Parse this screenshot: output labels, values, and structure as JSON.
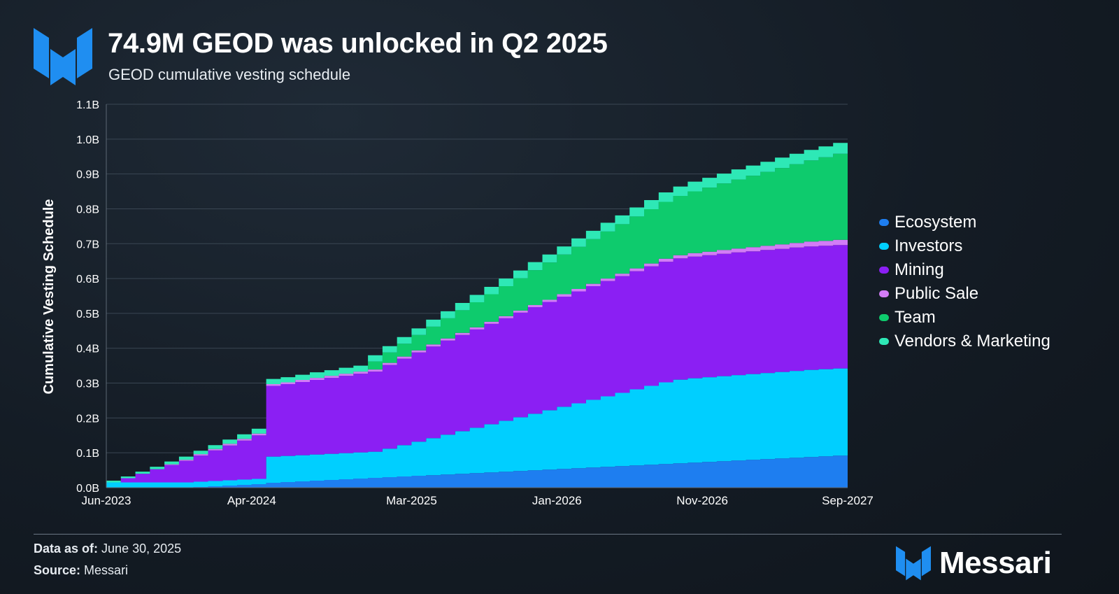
{
  "header": {
    "title": "74.9M GEOD was unlocked in Q2 2025",
    "subtitle": "GEOD cumulative vesting schedule"
  },
  "footer": {
    "data_as_of_label": "Data as of:",
    "data_as_of_value": "June 30, 2025",
    "source_label": "Source:",
    "source_value": "Messari",
    "brand_name": "Messari"
  },
  "colors": {
    "background": "#151d26",
    "grid": "#3a4653",
    "text": "#ffffff",
    "brand_blue": "#1f8ef1"
  },
  "chart_data": {
    "type": "area",
    "stacked": true,
    "title": "74.9M GEOD was unlocked in Q2 2025",
    "subtitle": "GEOD cumulative vesting schedule",
    "xlabel": "",
    "ylabel": "Cumulative Vesting Schedule",
    "ylim": [
      0,
      1.1
    ],
    "y_unit": "B",
    "yticks": [
      "0.0B",
      "0.1B",
      "0.2B",
      "0.3B",
      "0.4B",
      "0.5B",
      "0.6B",
      "0.7B",
      "0.8B",
      "0.9B",
      "1.0B",
      "1.1B"
    ],
    "xtick_labels": [
      "Jun-2023",
      "Apr-2024",
      "Mar-2025",
      "Jan-2026",
      "Nov-2026",
      "Sep-2027"
    ],
    "xtick_month_index": [
      0,
      10,
      21,
      31,
      41,
      51
    ],
    "grid": true,
    "legend_position": "right",
    "x": [
      "Jun-2023",
      "Jul-2023",
      "Aug-2023",
      "Sep-2023",
      "Oct-2023",
      "Nov-2023",
      "Dec-2023",
      "Jan-2024",
      "Feb-2024",
      "Mar-2024",
      "Apr-2024",
      "May-2024",
      "Jun-2024",
      "Jul-2024",
      "Aug-2024",
      "Sep-2024",
      "Oct-2024",
      "Nov-2024",
      "Dec-2024",
      "Jan-2025",
      "Feb-2025",
      "Mar-2025",
      "Apr-2025",
      "May-2025",
      "Jun-2025",
      "Jul-2025",
      "Aug-2025",
      "Sep-2025",
      "Oct-2025",
      "Nov-2025",
      "Dec-2025",
      "Jan-2026",
      "Feb-2026",
      "Mar-2026",
      "Apr-2026",
      "May-2026",
      "Jun-2026",
      "Jul-2026",
      "Aug-2026",
      "Sep-2026",
      "Oct-2026",
      "Nov-2026",
      "Dec-2026",
      "Jan-2027",
      "Feb-2027",
      "Mar-2027",
      "Apr-2027",
      "May-2027",
      "Jun-2027",
      "Jul-2027",
      "Aug-2027",
      "Sep-2027"
    ],
    "series": [
      {
        "name": "Ecosystem",
        "color": "#1e7ef0",
        "values": [
          0.0,
          0.0,
          0.0,
          0.0,
          0.0,
          0.0,
          0.002,
          0.004,
          0.006,
          0.008,
          0.01,
          0.014,
          0.016,
          0.018,
          0.02,
          0.022,
          0.024,
          0.026,
          0.028,
          0.03,
          0.032,
          0.034,
          0.036,
          0.038,
          0.04,
          0.042,
          0.044,
          0.046,
          0.048,
          0.05,
          0.052,
          0.054,
          0.056,
          0.058,
          0.06,
          0.062,
          0.064,
          0.066,
          0.068,
          0.07,
          0.072,
          0.074,
          0.076,
          0.078,
          0.08,
          0.082,
          0.084,
          0.086,
          0.088,
          0.09,
          0.092,
          0.096
        ]
      },
      {
        "name": "Investors",
        "color": "#00cfff",
        "values": [
          0.015,
          0.015,
          0.015,
          0.015,
          0.015,
          0.015,
          0.015,
          0.015,
          0.015,
          0.015,
          0.015,
          0.075,
          0.075,
          0.075,
          0.075,
          0.075,
          0.075,
          0.075,
          0.075,
          0.082,
          0.09,
          0.098,
          0.106,
          0.114,
          0.122,
          0.13,
          0.138,
          0.146,
          0.154,
          0.162,
          0.17,
          0.178,
          0.186,
          0.194,
          0.202,
          0.21,
          0.218,
          0.226,
          0.234,
          0.24,
          0.242,
          0.243,
          0.244,
          0.245,
          0.246,
          0.247,
          0.248,
          0.249,
          0.25,
          0.25,
          0.25,
          0.25
        ]
      },
      {
        "name": "Mining",
        "color": "#8b1ff3",
        "values": [
          0.0,
          0.012,
          0.025,
          0.038,
          0.05,
          0.062,
          0.075,
          0.088,
          0.1,
          0.112,
          0.125,
          0.203,
          0.206,
          0.21,
          0.214,
          0.218,
          0.222,
          0.226,
          0.23,
          0.24,
          0.248,
          0.256,
          0.263,
          0.27,
          0.276,
          0.282,
          0.288,
          0.294,
          0.3,
          0.306,
          0.311,
          0.316,
          0.321,
          0.326,
          0.331,
          0.335,
          0.339,
          0.343,
          0.346,
          0.348,
          0.349,
          0.35,
          0.351,
          0.352,
          0.352,
          0.353,
          0.353,
          0.354,
          0.354,
          0.354,
          0.354,
          0.355
        ]
      },
      {
        "name": "Public Sale",
        "color": "#d37cf6",
        "values": [
          0.0,
          0.0,
          0.0,
          0.0,
          0.002,
          0.003,
          0.004,
          0.004,
          0.005,
          0.005,
          0.005,
          0.005,
          0.005,
          0.006,
          0.006,
          0.006,
          0.006,
          0.006,
          0.006,
          0.006,
          0.006,
          0.006,
          0.006,
          0.006,
          0.006,
          0.006,
          0.006,
          0.006,
          0.006,
          0.006,
          0.006,
          0.007,
          0.007,
          0.007,
          0.007,
          0.007,
          0.008,
          0.008,
          0.009,
          0.009,
          0.01,
          0.01,
          0.011,
          0.011,
          0.012,
          0.012,
          0.013,
          0.013,
          0.014,
          0.014,
          0.015,
          0.015
        ]
      },
      {
        "name": "Team",
        "color": "#0ecb6d",
        "values": [
          0.0,
          0.0,
          0.0,
          0.0,
          0.0,
          0.0,
          0.0,
          0.0,
          0.0,
          0.0,
          0.0,
          0.0,
          0.0,
          0.0,
          0.0,
          0.0,
          0.0,
          0.0,
          0.023,
          0.03,
          0.037,
          0.044,
          0.051,
          0.058,
          0.065,
          0.072,
          0.079,
          0.086,
          0.093,
          0.1,
          0.107,
          0.114,
          0.121,
          0.128,
          0.135,
          0.142,
          0.149,
          0.156,
          0.163,
          0.17,
          0.177,
          0.184,
          0.191,
          0.198,
          0.205,
          0.212,
          0.219,
          0.226,
          0.233,
          0.24,
          0.247,
          0.254
        ]
      },
      {
        "name": "Vendors & Marketing",
        "color": "#2ee8b6",
        "values": [
          0.005,
          0.005,
          0.006,
          0.007,
          0.008,
          0.009,
          0.01,
          0.011,
          0.012,
          0.013,
          0.014,
          0.015,
          0.015,
          0.015,
          0.016,
          0.016,
          0.017,
          0.017,
          0.018,
          0.018,
          0.019,
          0.019,
          0.02,
          0.02,
          0.021,
          0.021,
          0.021,
          0.022,
          0.022,
          0.023,
          0.023,
          0.023,
          0.024,
          0.024,
          0.025,
          0.025,
          0.026,
          0.026,
          0.027,
          0.027,
          0.028,
          0.028,
          0.028,
          0.029,
          0.029,
          0.029,
          0.03,
          0.03,
          0.03,
          0.031,
          0.031,
          0.031
        ]
      }
    ]
  }
}
